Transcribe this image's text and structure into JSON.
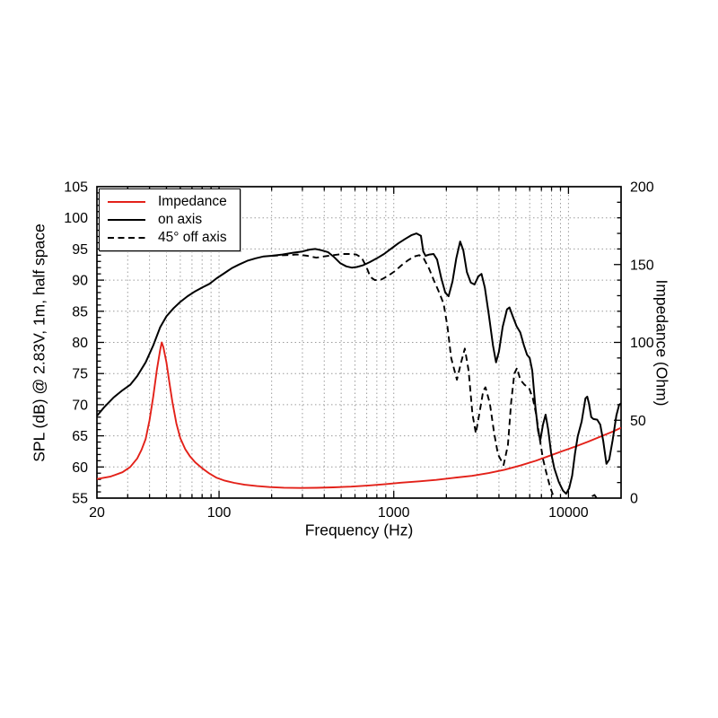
{
  "chart_data": {
    "type": "line",
    "title": "",
    "xlabel": "Frequency (Hz)",
    "ylabel_left": "SPL (dB) @ 2.83V, 1m, half space",
    "ylabel_right": "Impedance (Ohm)",
    "x_scale": "log",
    "x_range": [
      20,
      20000
    ],
    "y_left_range": [
      55,
      105
    ],
    "y_right_range": [
      0,
      200
    ],
    "grid": {
      "on": true,
      "color": "#9c9c9c",
      "style": "dotted"
    },
    "axis_color": "#000000",
    "x_major_ticks": [
      {
        "value": 20,
        "label": "20"
      },
      {
        "value": 100,
        "label": "100"
      },
      {
        "value": 1000,
        "label": "1000"
      },
      {
        "value": 10000,
        "label": "10000"
      }
    ],
    "y_left_ticks": [
      {
        "value": 55,
        "label": "55"
      },
      {
        "value": 60,
        "label": "60"
      },
      {
        "value": 65,
        "label": "65"
      },
      {
        "value": 70,
        "label": "70"
      },
      {
        "value": 75,
        "label": "75"
      },
      {
        "value": 80,
        "label": "80"
      },
      {
        "value": 85,
        "label": "85"
      },
      {
        "value": 90,
        "label": "90"
      },
      {
        "value": 95,
        "label": "95"
      },
      {
        "value": 100,
        "label": "100"
      },
      {
        "value": 105,
        "label": "105"
      }
    ],
    "y_right_ticks": [
      {
        "value": 0,
        "label": "0"
      },
      {
        "value": 50,
        "label": "50"
      },
      {
        "value": 100,
        "label": "100"
      },
      {
        "value": 150,
        "label": "150"
      },
      {
        "value": 200,
        "label": "200"
      }
    ],
    "y_left_minor_step": 1,
    "y_right_minor_step": 10,
    "legend": {
      "position": "top-left",
      "items": [
        {
          "label": "Impedance",
          "color": "#e32119",
          "dash": "solid"
        },
        {
          "label": "on axis",
          "color": "#000000",
          "dash": "solid"
        },
        {
          "label": "45° off axis",
          "color": "#000000",
          "dash": "dashed"
        }
      ]
    },
    "series": [
      {
        "name": "Impedance",
        "axis": "right",
        "color": "#e32119",
        "style": "solid",
        "width": 1.9,
        "points": [
          [
            20,
            12.3
          ],
          [
            24,
            13.9
          ],
          [
            28,
            16.6
          ],
          [
            31,
            20
          ],
          [
            34,
            25.5
          ],
          [
            36,
            31
          ],
          [
            38,
            38
          ],
          [
            40,
            50
          ],
          [
            42,
            65
          ],
          [
            44,
            82
          ],
          [
            46,
            95
          ],
          [
            47,
            100
          ],
          [
            48,
            97
          ],
          [
            50,
            87
          ],
          [
            52,
            74
          ],
          [
            54,
            62
          ],
          [
            57,
            48
          ],
          [
            60,
            38.5
          ],
          [
            64,
            31.5
          ],
          [
            68,
            27
          ],
          [
            73,
            23
          ],
          [
            80,
            19.2
          ],
          [
            88,
            15.8
          ],
          [
            97,
            13
          ],
          [
            108,
            11.2
          ],
          [
            122,
            9.8
          ],
          [
            140,
            8.6
          ],
          [
            165,
            7.7
          ],
          [
            195,
            7.1
          ],
          [
            235,
            6.7
          ],
          [
            290,
            6.5
          ],
          [
            360,
            6.6
          ],
          [
            450,
            6.9
          ],
          [
            570,
            7.4
          ],
          [
            720,
            8.1
          ],
          [
            900,
            9
          ],
          [
            1100,
            9.9
          ],
          [
            1400,
            10.8
          ],
          [
            1750,
            11.7
          ],
          [
            2200,
            13
          ],
          [
            2800,
            14.3
          ],
          [
            3500,
            16.1
          ],
          [
            4300,
            18.2
          ],
          [
            5300,
            20.9
          ],
          [
            6500,
            24
          ],
          [
            7800,
            27.2
          ],
          [
            9300,
            30.3
          ],
          [
            11000,
            33.2
          ],
          [
            13000,
            36.3
          ],
          [
            15500,
            39.8
          ],
          [
            18000,
            42.8
          ],
          [
            20000,
            45.2
          ]
        ]
      },
      {
        "name": "on axis",
        "axis": "left",
        "color": "#000000",
        "style": "solid",
        "width": 2,
        "points": [
          [
            20,
            68.2
          ],
          [
            22,
            69.6
          ],
          [
            25,
            71.2
          ],
          [
            28,
            72.3
          ],
          [
            31,
            73.2
          ],
          [
            34,
            74.6
          ],
          [
            38,
            76.8
          ],
          [
            42,
            79.5
          ],
          [
            46,
            82.4
          ],
          [
            50,
            84.2
          ],
          [
            55,
            85.5
          ],
          [
            60,
            86.5
          ],
          [
            66,
            87.4
          ],
          [
            72,
            88.1
          ],
          [
            80,
            88.8
          ],
          [
            88,
            89.4
          ],
          [
            97,
            90.3
          ],
          [
            107,
            91.1
          ],
          [
            118,
            91.9
          ],
          [
            130,
            92.5
          ],
          [
            145,
            93.1
          ],
          [
            162,
            93.5
          ],
          [
            180,
            93.8
          ],
          [
            200,
            93.9
          ],
          [
            230,
            94.1
          ],
          [
            265,
            94.4
          ],
          [
            300,
            94.6
          ],
          [
            330,
            94.9
          ],
          [
            355,
            95
          ],
          [
            385,
            94.8
          ],
          [
            420,
            94.5
          ],
          [
            455,
            93.7
          ],
          [
            495,
            92.7
          ],
          [
            535,
            92.2
          ],
          [
            575,
            92
          ],
          [
            615,
            92.1
          ],
          [
            670,
            92.4
          ],
          [
            730,
            92.9
          ],
          [
            800,
            93.5
          ],
          [
            880,
            94.2
          ],
          [
            960,
            95
          ],
          [
            1060,
            95.9
          ],
          [
            1160,
            96.6
          ],
          [
            1260,
            97.2
          ],
          [
            1350,
            97.5
          ],
          [
            1430,
            97.1
          ],
          [
            1475,
            94.6
          ],
          [
            1520,
            93.9
          ],
          [
            1600,
            94.1
          ],
          [
            1690,
            94.2
          ],
          [
            1770,
            93.3
          ],
          [
            1870,
            90.3
          ],
          [
            1970,
            88
          ],
          [
            2060,
            87.4
          ],
          [
            2170,
            89.8
          ],
          [
            2280,
            93.5
          ],
          [
            2400,
            96.2
          ],
          [
            2500,
            94.8
          ],
          [
            2620,
            91.3
          ],
          [
            2760,
            89.6
          ],
          [
            2900,
            89.3
          ],
          [
            3050,
            90.6
          ],
          [
            3180,
            91
          ],
          [
            3320,
            88.8
          ],
          [
            3500,
            84.5
          ],
          [
            3700,
            79.5
          ],
          [
            3850,
            76.8
          ],
          [
            4000,
            78.5
          ],
          [
            4200,
            82.5
          ],
          [
            4450,
            85.3
          ],
          [
            4600,
            85.6
          ],
          [
            4800,
            84.2
          ],
          [
            5050,
            82.6
          ],
          [
            5300,
            81.6
          ],
          [
            5550,
            79.6
          ],
          [
            5800,
            78
          ],
          [
            6000,
            77.5
          ],
          [
            6200,
            75.5
          ],
          [
            6450,
            70
          ],
          [
            6700,
            65.8
          ],
          [
            6900,
            64.3
          ],
          [
            7150,
            66.8
          ],
          [
            7400,
            68.4
          ],
          [
            7650,
            66
          ],
          [
            7950,
            62.3
          ],
          [
            8300,
            59.8
          ],
          [
            8800,
            57.6
          ],
          [
            9300,
            56.2
          ],
          [
            9700,
            55.7
          ],
          [
            10100,
            56.6
          ],
          [
            10500,
            58.6
          ],
          [
            10900,
            62.2
          ],
          [
            11300,
            64.9
          ],
          [
            11900,
            67.3
          ],
          [
            12500,
            71
          ],
          [
            12800,
            71.3
          ],
          [
            13100,
            70.2
          ],
          [
            13500,
            68
          ],
          [
            13900,
            67.7
          ],
          [
            14600,
            67.6
          ],
          [
            15200,
            66.8
          ],
          [
            15800,
            64.2
          ],
          [
            16500,
            60.5
          ],
          [
            17100,
            61.2
          ],
          [
            17900,
            64.3
          ],
          [
            18800,
            68.3
          ],
          [
            19500,
            70
          ],
          [
            20000,
            70.2
          ]
        ]
      },
      {
        "name": "45° off axis",
        "axis": "left",
        "color": "#000000",
        "style": "dashed",
        "width": 1.9,
        "points": [
          [
            200,
            93.9
          ],
          [
            240,
            94
          ],
          [
            280,
            94.1
          ],
          [
            320,
            93.9
          ],
          [
            360,
            93.6
          ],
          [
            400,
            93.8
          ],
          [
            450,
            94
          ],
          [
            510,
            94.2
          ],
          [
            560,
            94.2
          ],
          [
            610,
            94.1
          ],
          [
            655,
            93.6
          ],
          [
            695,
            92.2
          ],
          [
            735,
            90.5
          ],
          [
            780,
            90
          ],
          [
            850,
            90.1
          ],
          [
            930,
            90.7
          ],
          [
            1010,
            91.4
          ],
          [
            1110,
            92.4
          ],
          [
            1210,
            93.2
          ],
          [
            1310,
            93.8
          ],
          [
            1400,
            94
          ],
          [
            1490,
            93.4
          ],
          [
            1590,
            91.9
          ],
          [
            1700,
            89.9
          ],
          [
            1820,
            88
          ],
          [
            1930,
            86.2
          ],
          [
            2030,
            82.5
          ],
          [
            2130,
            77.5
          ],
          [
            2300,
            74
          ],
          [
            2430,
            76.8
          ],
          [
            2550,
            79
          ],
          [
            2680,
            75.5
          ],
          [
            2820,
            68.5
          ],
          [
            2950,
            65.4
          ],
          [
            3100,
            68.8
          ],
          [
            3250,
            72.2
          ],
          [
            3350,
            72.8
          ],
          [
            3550,
            70.2
          ],
          [
            3750,
            65.5
          ],
          [
            3950,
            62
          ],
          [
            4250,
            60.3
          ],
          [
            4500,
            63.5
          ],
          [
            4700,
            70.5
          ],
          [
            4900,
            75
          ],
          [
            5080,
            75.9
          ],
          [
            5300,
            74
          ],
          [
            5600,
            73.2
          ],
          [
            5950,
            72.7
          ],
          [
            6250,
            71
          ],
          [
            6550,
            68.3
          ],
          [
            6850,
            64.5
          ],
          [
            7150,
            61.3
          ],
          [
            7450,
            59.2
          ],
          [
            7850,
            56.8
          ],
          [
            8250,
            55.1
          ],
          [
            8700,
            53.2
          ],
          [
            10500,
            52.8
          ],
          [
            13200,
            54.5
          ],
          [
            13700,
            55.3
          ],
          [
            14100,
            55.5
          ],
          [
            14500,
            55
          ],
          [
            14800,
            53.8
          ]
        ]
      }
    ]
  }
}
